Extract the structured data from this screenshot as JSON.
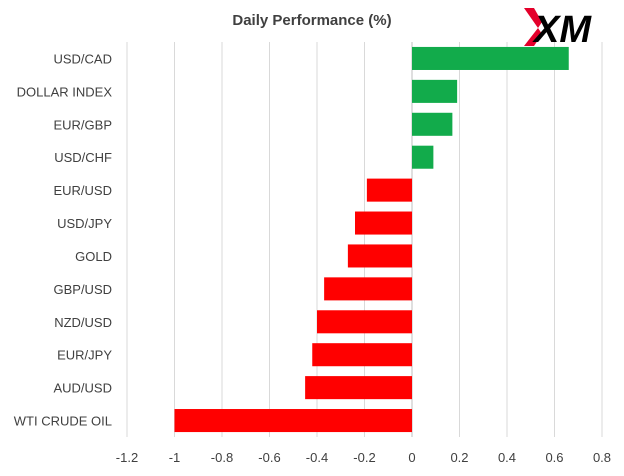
{
  "logo": {
    "text": "XM",
    "icon": "xm-logo"
  },
  "chart_data": {
    "type": "bar",
    "orientation": "horizontal",
    "title": "Daily Performance  (%)",
    "xlabel": "",
    "ylabel": "",
    "xlim": [
      -1.2,
      0.8
    ],
    "xticks": [
      -1.2,
      -1,
      -0.8,
      -0.6,
      -0.4,
      -0.2,
      0,
      0.2,
      0.4,
      0.6,
      0.8
    ],
    "xtick_labels": [
      "-1.2",
      "-1",
      "-0.8",
      "-0.6",
      "-0.4",
      "-0.2",
      "0",
      "0.2",
      "0.4",
      "0.6",
      "0.8"
    ],
    "grid": "vertical",
    "legend": "none",
    "colors": {
      "positive": "#12AB4B",
      "negative": "#FF0000",
      "grid": "#D9D9D9"
    },
    "categories": [
      "USD/CAD",
      "DOLLAR INDEX",
      "EUR/GBP",
      "USD/CHF",
      "EUR/USD",
      "USD/JPY",
      "GOLD",
      "GBP/USD",
      "NZD/USD",
      "EUR/JPY",
      "AUD/USD",
      "WTI CRUDE OIL"
    ],
    "values": [
      0.66,
      0.19,
      0.17,
      0.09,
      -0.19,
      -0.24,
      -0.27,
      -0.37,
      -0.4,
      -0.42,
      -0.45,
      -1.0
    ]
  }
}
